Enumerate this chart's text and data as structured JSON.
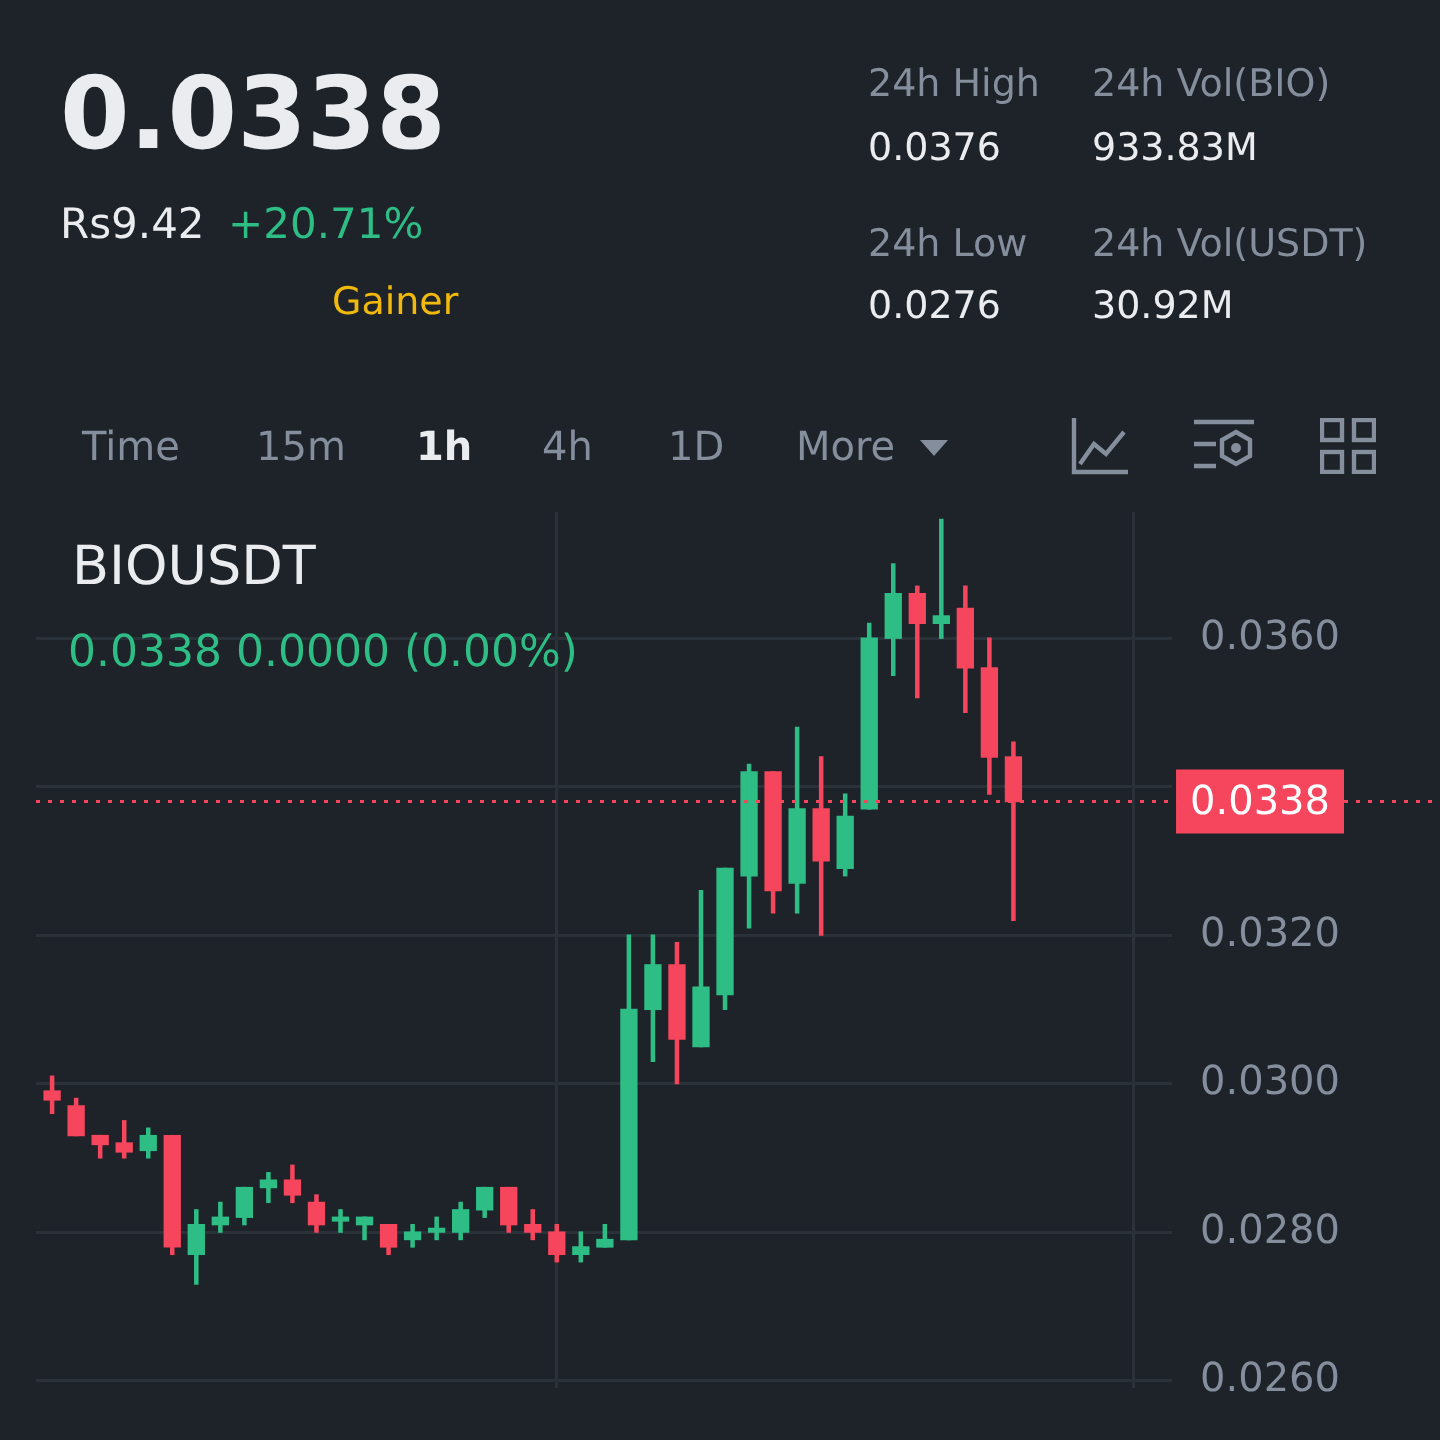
{
  "chart_data": {
    "type": "candlestick",
    "title": "BIOUSDT",
    "subtitle": "0.0338  0.0000 (0.00%)",
    "annotations": [
      "0.0338",
      "Rs9.42",
      "+20.71%",
      "Gainer",
      "24h High",
      "0.0376",
      "24h Vol(BIO)",
      "933.83M",
      "24h Low",
      "0.0276",
      "24h Vol(USDT)",
      "30.92M",
      "Time",
      "15m",
      "1h",
      "4h",
      "1D",
      "More"
    ],
    "categories": [
      null,
      null,
      null,
      null,
      null,
      null,
      null,
      null,
      null,
      null,
      null,
      null,
      null,
      null,
      null,
      null,
      null,
      null,
      null,
      null,
      null,
      null,
      null,
      null,
      null,
      null,
      null,
      null,
      null,
      null,
      null,
      null,
      null,
      null,
      null,
      null,
      null,
      null,
      null,
      null,
      null
    ],
    "ohlc": [
      [
        0.0299,
        0.0301,
        0.0296,
        0.02978
      ],
      [
        0.0297,
        0.0298,
        0.0293,
        0.0293
      ],
      [
        0.0293,
        0.0293,
        0.029,
        0.02918
      ],
      [
        0.0292,
        0.0295,
        0.029,
        0.02908
      ],
      [
        0.0291,
        0.0294,
        0.029,
        0.0293
      ],
      [
        0.0293,
        0.0293,
        0.0277,
        0.0278
      ],
      [
        0.0277,
        0.0283,
        0.0273,
        0.0281
      ],
      [
        0.0281,
        0.0284,
        0.028,
        0.0282
      ],
      [
        0.0282,
        0.0286,
        0.0281,
        0.0286
      ],
      [
        0.0286,
        0.0288,
        0.0284,
        0.0287
      ],
      [
        0.0287,
        0.0289,
        0.0284,
        0.0285
      ],
      [
        0.0284,
        0.0285,
        0.028,
        0.0281
      ],
      [
        0.02815,
        0.0283,
        0.028,
        0.0282
      ],
      [
        0.0281,
        0.0282,
        0.0279,
        0.0282
      ],
      [
        0.0281,
        0.0281,
        0.0277,
        0.0278
      ],
      [
        0.0279,
        0.0281,
        0.0278,
        0.028
      ],
      [
        0.028,
        0.0282,
        0.0279,
        0.02805
      ],
      [
        0.028,
        0.0284,
        0.0279,
        0.0283
      ],
      [
        0.0283,
        0.0286,
        0.0282,
        0.0286
      ],
      [
        0.0286,
        0.0286,
        0.028,
        0.0281
      ],
      [
        0.0281,
        0.0283,
        0.0279,
        0.028
      ],
      [
        0.028,
        0.0281,
        0.0276,
        0.0277
      ],
      [
        0.0277,
        0.028,
        0.0276,
        0.0278
      ],
      [
        0.0278,
        0.0281,
        0.0278,
        0.0279
      ],
      [
        0.0279,
        0.032,
        0.0279,
        0.031
      ],
      [
        0.031,
        0.032,
        0.0303,
        0.0316
      ],
      [
        0.0316,
        0.0319,
        0.03,
        0.0306
      ],
      [
        0.0305,
        0.0326,
        0.0305,
        0.0313
      ],
      [
        0.0312,
        0.0329,
        0.031,
        0.0329
      ],
      [
        0.0328,
        0.0343,
        0.0321,
        0.0342
      ],
      [
        0.0342,
        0.0342,
        0.0323,
        0.0326
      ],
      [
        0.0327,
        0.0348,
        0.0323,
        0.0337
      ],
      [
        0.0337,
        0.0344,
        0.032,
        0.033
      ],
      [
        0.0329,
        0.0339,
        0.0328,
        0.0336
      ],
      [
        0.0337,
        0.0362,
        0.0337,
        0.036
      ],
      [
        0.036,
        0.037,
        0.0355,
        0.0366
      ],
      [
        0.0366,
        0.0367,
        0.0352,
        0.0362
      ],
      [
        0.0362,
        0.0376,
        0.036,
        0.0363
      ],
      [
        0.0364,
        0.0367,
        0.035,
        0.0356
      ],
      [
        0.0356,
        0.036,
        0.0339,
        0.0344
      ],
      [
        0.0344,
        0.0346,
        0.0322,
        0.0338
      ]
    ],
    "colors": [
      "#f6465d",
      "#f6465d",
      "#f6465d",
      "#f6465d",
      "#2ebd85",
      "#f6465d",
      "#2ebd85",
      "#2ebd85",
      "#2ebd85",
      "#2ebd85",
      "#f6465d",
      "#f6465d",
      "#2ebd85",
      "#2ebd85",
      "#f6465d",
      "#2ebd85",
      "#2ebd85",
      "#2ebd85",
      "#2ebd85",
      "#f6465d",
      "#f6465d",
      "#f6465d",
      "#2ebd85",
      "#2ebd85",
      "#2ebd85",
      "#2ebd85",
      "#f6465d",
      "#2ebd85",
      "#2ebd85",
      "#2ebd85",
      "#f6465d",
      "#2ebd85",
      "#f6465d",
      "#2ebd85",
      "#2ebd85",
      "#2ebd85",
      "#f6465d",
      "#2ebd85",
      "#f6465d",
      "#f6465d",
      "#f6465d"
    ],
    "ylim": [
      0.0259,
      0.0377
    ],
    "yticks": [
      {
        "value": 0.026,
        "label": "0.0260"
      },
      {
        "value": 0.028,
        "label": "0.0280"
      },
      {
        "value": 0.03,
        "label": "0.0300"
      },
      {
        "value": 0.032,
        "label": "0.0320"
      },
      {
        "value": 0.034,
        "label": null
      },
      {
        "value": 0.036,
        "label": "0.0360"
      }
    ],
    "ref_lines": [
      {
        "axis": "y",
        "value": 0.0338,
        "label": "0.0338",
        "color": "#f6465d",
        "line_style": "dotted"
      }
    ],
    "grid": true,
    "legend": false
  }
}
